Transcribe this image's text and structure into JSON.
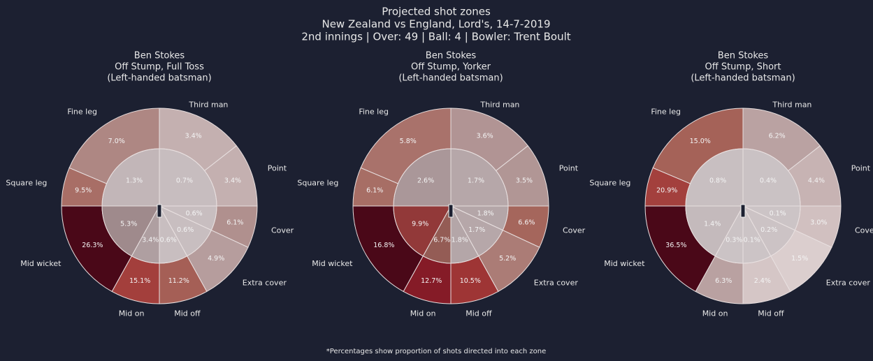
{
  "title": [
    "Projected shot zones",
    "New Zealand vs England, Lord's, 14-7-2019",
    "2nd innings | Over: 49 | Ball: 4 | Bowler: Trent Boult"
  ],
  "footnote": "*Percentages show proportion of shots directed into each zone",
  "chart_data": [
    {
      "type": "pie",
      "title": [
        "Ben Stokes",
        "Off Stump, Full Toss",
        "(Left-handed batsman)"
      ],
      "zones": [
        "Third man",
        "Point",
        "Cover",
        "Extra cover",
        "Mid off",
        "Mid on",
        "Mid wicket",
        "Square leg",
        "Fine leg"
      ],
      "colormap": [
        "#e6dcdc",
        "#b29898",
        "#a5645a",
        "#a33a38",
        "#7c1222",
        "#4a0818"
      ],
      "outer": {
        "values": [
          3.4,
          3.4,
          6.1,
          4.9,
          11.2,
          15.1,
          26.3,
          9.5,
          7.0
        ],
        "value_labels": [
          "3.4%",
          "3.4%",
          "6.1%",
          "4.9%",
          "11.2%",
          "15.1%",
          "26.3%",
          "9.5%",
          "7.0%"
        ]
      },
      "inner": {
        "values": [
          0.7,
          0.6,
          0.6,
          0.6,
          3.4,
          5.3,
          1.3
        ],
        "value_labels": [
          "0.7%",
          "0.6%",
          "0.6%",
          "0.6%",
          "3.4%",
          "5.3%",
          "1.3%"
        ]
      }
    },
    {
      "type": "pie",
      "title": [
        "Ben Stokes",
        "Off Stump, Yorker",
        "(Left-handed batsman)"
      ],
      "zones": [
        "Third man",
        "Point",
        "Cover",
        "Extra cover",
        "Mid off",
        "Mid on",
        "Mid wicket",
        "Square leg",
        "Fine leg"
      ],
      "colormap": [
        "#e6dcdc",
        "#b29898",
        "#a5645a",
        "#a33a38",
        "#7c1222",
        "#4a0818"
      ],
      "outer": {
        "values": [
          3.6,
          3.5,
          6.6,
          5.2,
          10.5,
          12.7,
          16.8,
          6.1,
          5.8
        ],
        "value_labels": [
          "3.6%",
          "3.5%",
          "6.6%",
          "5.2%",
          "10.5%",
          "12.7%",
          "16.8%",
          "6.1%",
          "5.8%"
        ]
      },
      "inner": {
        "values": [
          1.7,
          1.8,
          1.7,
          1.8,
          6.7,
          9.9,
          2.6
        ],
        "value_labels": [
          "1.7%",
          "1.8%",
          "1.7%",
          "1.8%",
          "6.7%",
          "9.9%",
          "2.6%"
        ]
      }
    },
    {
      "type": "pie",
      "title": [
        "Ben Stokes",
        "Off Stump, Short",
        "(Left-handed batsman)"
      ],
      "zones": [
        "Third man",
        "Point",
        "Cover",
        "Extra cover",
        "Mid off",
        "Mid on",
        "Mid wicket",
        "Square leg",
        "Fine leg"
      ],
      "colormap": [
        "#e6dcdc",
        "#b29898",
        "#a5645a",
        "#a33a38",
        "#7c1222",
        "#4a0818"
      ],
      "outer": {
        "values": [
          6.2,
          4.4,
          3.0,
          1.5,
          2.4,
          6.3,
          36.5,
          20.9,
          15.0
        ],
        "value_labels": [
          "6.2%",
          "4.4%",
          "3.0%",
          "1.5%",
          "2.4%",
          "6.3%",
          "36.5%",
          "20.9%",
          "15.0%"
        ]
      },
      "inner": {
        "values": [
          0.4,
          0.1,
          0.2,
          0.1,
          0.3,
          1.4,
          0.8
        ],
        "value_labels": [
          "0.4%",
          "0.1%",
          "0.2%",
          "0.1%",
          "0.3%",
          "1.4%",
          "0.8%"
        ]
      }
    }
  ]
}
